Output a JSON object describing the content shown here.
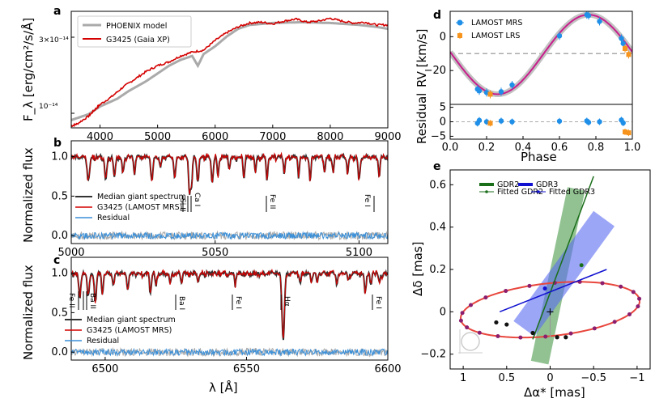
{
  "chart_data": [
    {
      "panel": "a",
      "type": "line",
      "ylabel": "F_λ [erg/cm²/s/Å]",
      "xlim": [
        3500,
        9000
      ],
      "xticks": [
        "4000",
        "5000",
        "6000",
        "7000",
        "8000",
        "9000"
      ],
      "yticks": [
        "10⁻¹⁴",
        "3×10⁻¹⁴"
      ],
      "legend": [
        "PHOENIX model",
        "G3425 (Gaia XP)"
      ],
      "series": [
        {
          "name": "PHOENIX model",
          "color": "#aaaaaa",
          "x": [
            3500,
            3800,
            4000,
            4300,
            4500,
            4800,
            5000,
            5200,
            5400,
            5600,
            5700,
            5800,
            6000,
            6200,
            6400,
            6600,
            7000,
            7500,
            8000,
            8500,
            8800,
            9000
          ],
          "y": [
            0.6,
            0.75,
            0.95,
            1.15,
            1.35,
            1.6,
            1.8,
            2.0,
            2.15,
            2.25,
            2.0,
            2.3,
            2.5,
            2.75,
            2.95,
            3.05,
            3.1,
            3.12,
            3.1,
            3.05,
            3.0,
            2.95
          ]
        },
        {
          "name": "G3425 (Gaia XP)",
          "color": "#d40000",
          "x": [
            3500,
            3600,
            3800,
            3900,
            4000,
            4200,
            4400,
            4600,
            4800,
            5000,
            5200,
            5400,
            5600,
            5800,
            6000,
            6200,
            6400,
            6600,
            6800,
            7000,
            7200,
            7400,
            7600,
            7800,
            8000,
            8200,
            8400,
            8600,
            8800,
            9000
          ],
          "y": [
            0.45,
            0.5,
            0.7,
            0.85,
            1.0,
            1.2,
            1.45,
            1.65,
            1.85,
            2.0,
            2.1,
            2.25,
            2.35,
            2.4,
            2.65,
            2.85,
            3.0,
            3.1,
            3.12,
            3.08,
            3.15,
            3.2,
            3.12,
            3.15,
            3.22,
            3.15,
            3.1,
            3.12,
            3.05,
            3.05
          ]
        }
      ]
    },
    {
      "panel": "b",
      "type": "line",
      "ylabel": "Normalized flux",
      "xlim": [
        5000,
        5110
      ],
      "ylim": [
        -0.1,
        1.2
      ],
      "xticks": [
        "5000",
        "5050",
        "5100"
      ],
      "yticks": [
        "0.0",
        "0.5",
        "1.0"
      ],
      "legend": [
        "Median giant spectrum",
        "G3425 (LAMOST MRS)",
        "Residual"
      ],
      "line_labels": [
        "Si II",
        "Ca I",
        "Fe II",
        "Fe I"
      ],
      "line_positions": [
        5041,
        5042,
        5100
      ]
    },
    {
      "panel": "c",
      "type": "line",
      "ylabel": "Normalized flux",
      "xlabel": "λ [Å]",
      "xlim": [
        6488,
        6600
      ],
      "ylim": [
        -0.1,
        1.2
      ],
      "xticks": [
        "6500",
        "6550",
        "6600"
      ],
      "yticks": [
        "0.0",
        "0.5",
        "1.0"
      ],
      "legend": [
        "Median giant spectrum",
        "G3425 (LAMOST MRS)",
        "Residual"
      ],
      "line_labels": [
        "Fe II",
        "Ba II",
        "Ba I",
        "Fe I",
        "Hα",
        "Fe I"
      ]
    },
    {
      "panel": "d",
      "type": "scatter",
      "ylabel": "RV [km/s]",
      "ylabel2": "Residual",
      "xlabel": "Phase",
      "xlim": [
        0.0,
        1.0
      ],
      "ylim": [
        -40,
        15
      ],
      "ylim_resid": [
        -6,
        6
      ],
      "xticks": [
        "0.0",
        "0.2",
        "0.4",
        "0.6",
        "0.8",
        "1.0"
      ],
      "yticks": [
        "0",
        "−20"
      ],
      "yticks_resid": [
        "5",
        "0",
        "−5"
      ],
      "systemic_velocity": -10,
      "legend": [
        "LAMOST MRS",
        "LAMOST LRS"
      ],
      "series": [
        {
          "name": "LAMOST MRS",
          "color": "#1f8fe8",
          "phase": [
            0.15,
            0.16,
            0.2,
            0.28,
            0.34,
            0.6,
            0.75,
            0.76,
            0.82,
            0.94,
            0.95
          ],
          "rv": [
            -31,
            -32,
            -33,
            -32.5,
            -28.5,
            0.5,
            13,
            12.5,
            9,
            -1,
            -4
          ],
          "resid": [
            -0.5,
            0.5,
            0,
            0.3,
            0,
            0.2,
            0.3,
            -0.2,
            0,
            0.6,
            -0.4
          ]
        },
        {
          "name": "LAMOST LRS",
          "color": "#f7941d",
          "phase": [
            0.22,
            0.96,
            0.98
          ],
          "rv": [
            -34,
            -7,
            -10.5
          ],
          "resid": [
            -0.5,
            -3.5,
            -3.8
          ]
        }
      ]
    },
    {
      "panel": "e",
      "type": "scatter",
      "xlabel": "Δα* [mas]",
      "ylabel": "Δδ [mas]",
      "xlim": [
        1.15,
        -1.15
      ],
      "ylim": [
        -0.27,
        0.67
      ],
      "xticks": [
        "1",
        "0.5",
        "0",
        "−0.5",
        "−1"
      ],
      "yticks": [
        "0.6",
        "0.4",
        "0.2",
        "0",
        "−0.2"
      ],
      "legend": [
        "GDR2",
        "GDR3",
        "Fitted GDR2",
        "Fitted GDR3"
      ],
      "colors": {
        "gdr2": "#1a6e1a",
        "gdr3": "#1010d0",
        "orbit": "#e8463c"
      }
    }
  ],
  "panel_labels": [
    "a",
    "b",
    "c",
    "d",
    "e"
  ]
}
